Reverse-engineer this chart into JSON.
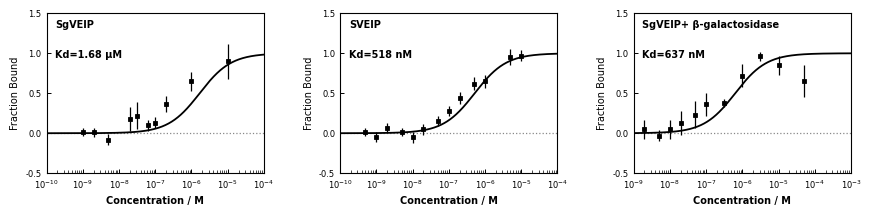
{
  "panels": [
    {
      "title": "SgVEIP",
      "kd_text": "Kd=1.68 μM",
      "kd_val": 1.68e-06,
      "xlim_log": [
        -10,
        -4
      ],
      "xlabel": "Concentration / M",
      "ylabel": "Fraction Bound",
      "ylim": [
        -0.5,
        1.5
      ],
      "yticks": [
        -0.5,
        0.0,
        0.5,
        1.0,
        1.5
      ],
      "data_x_log": [
        -9.0,
        -8.7,
        -8.3,
        -7.7,
        -7.5,
        -7.2,
        -7.0,
        -6.7,
        -6.0,
        -5.0
      ],
      "data_y": [
        0.01,
        0.01,
        -0.08,
        0.18,
        0.22,
        0.1,
        0.13,
        0.36,
        0.65,
        0.9
      ],
      "data_yerr": [
        0.05,
        0.06,
        0.07,
        0.15,
        0.17,
        0.07,
        0.07,
        0.1,
        0.12,
        0.22
      ]
    },
    {
      "title": "SVEIP",
      "kd_text": "Kd=518 nM",
      "kd_val": 5.18e-07,
      "xlim_log": [
        -10,
        -4
      ],
      "xlabel": "Concentration / M",
      "ylabel": "Fraction Bound",
      "ylim": [
        -0.5,
        1.5
      ],
      "yticks": [
        -0.5,
        0.0,
        0.5,
        1.0,
        1.5
      ],
      "data_x_log": [
        -9.3,
        -9.0,
        -8.7,
        -8.3,
        -8.0,
        -7.7,
        -7.3,
        -7.0,
        -6.7,
        -6.3,
        -6.0,
        -5.3,
        -5.0
      ],
      "data_y": [
        0.02,
        -0.05,
        0.07,
        0.01,
        -0.05,
        0.05,
        0.15,
        0.28,
        0.44,
        0.62,
        0.65,
        0.95,
        0.97
      ],
      "data_yerr": [
        0.05,
        0.06,
        0.06,
        0.05,
        0.07,
        0.07,
        0.06,
        0.06,
        0.07,
        0.08,
        0.08,
        0.1,
        0.07
      ]
    },
    {
      "title": "SgVEIP+ β-galactosidase",
      "kd_text": "Kd=637 nM",
      "kd_val": 6.37e-07,
      "xlim_log": [
        -9,
        -3
      ],
      "xlabel": "Concentration / M",
      "ylabel": "Fraction Bound",
      "ylim": [
        -0.5,
        1.5
      ],
      "yticks": [
        -0.5,
        0.0,
        0.5,
        1.0,
        1.5
      ],
      "data_x_log": [
        -8.7,
        -8.3,
        -8.0,
        -7.7,
        -7.3,
        -7.0,
        -6.5,
        -6.0,
        -5.5,
        -5.0,
        -4.3
      ],
      "data_y": [
        0.05,
        -0.03,
        0.05,
        0.13,
        0.23,
        0.36,
        0.38,
        0.72,
        0.96,
        0.85,
        0.65
      ],
      "data_yerr": [
        0.12,
        0.07,
        0.12,
        0.15,
        0.17,
        0.14,
        0.05,
        0.14,
        0.06,
        0.12,
        0.2
      ]
    }
  ],
  "background_color": "#ffffff",
  "line_color": "#000000",
  "marker_color": "#000000",
  "dotted_line_color": "#888888"
}
